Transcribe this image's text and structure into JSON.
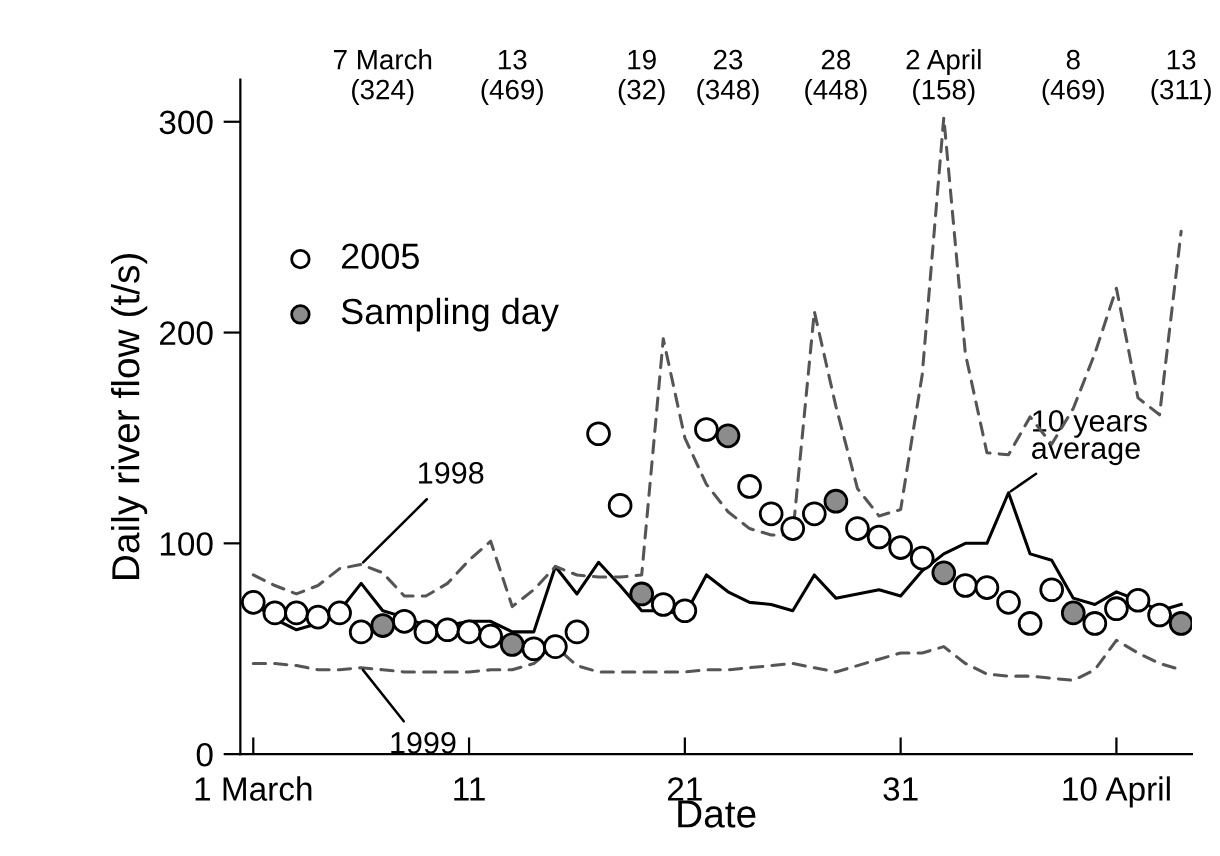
{
  "chart_data": {
    "type": "scatter",
    "xlabel": "Date",
    "ylabel": "Daily river flow (t/s)",
    "xlim": [
      0.4,
      44.5
    ],
    "ylim": [
      0,
      320
    ],
    "xticks": [
      {
        "value": 1,
        "label": "1 March"
      },
      {
        "value": 11,
        "label": "11"
      },
      {
        "value": 21,
        "label": "21"
      },
      {
        "value": 31,
        "label": "31"
      },
      {
        "value": 41,
        "label": "10 April"
      }
    ],
    "yticks": [
      0,
      100,
      200,
      300
    ],
    "grid": false,
    "legend": "top left",
    "annotations": [
      "7 March\n(324)",
      "13\n(469)",
      "19\n(32)",
      "23\n(348)",
      "28\n(448)",
      "2 April\n(158)",
      "8\n(469)",
      "13\n(311)"
    ],
    "series": [
      {
        "name": "2005",
        "type": "scatter",
        "marker": "circle",
        "color": "#ffffff",
        "x": [
          1,
          2,
          3,
          4,
          5,
          6,
          8,
          9,
          10,
          11,
          12,
          14,
          15,
          16,
          17,
          18,
          20,
          21,
          22,
          24,
          25,
          26,
          27,
          29,
          30,
          31,
          32,
          34,
          35,
          36,
          37,
          38,
          40,
          41,
          42,
          43
        ],
        "values": [
          72,
          67,
          67,
          65,
          67,
          58,
          63,
          58,
          59,
          58,
          56,
          50,
          51,
          58,
          152,
          118,
          71,
          68,
          154,
          127,
          114,
          107,
          114,
          107,
          103,
          98,
          93,
          80,
          79,
          72,
          62,
          78,
          62,
          69,
          73,
          66
        ]
      },
      {
        "name": "Sampling day",
        "type": "scatter",
        "marker": "circle",
        "color": "#8c8c8c",
        "x": [
          7,
          13,
          19,
          23,
          28,
          33,
          39,
          44
        ],
        "values": [
          61,
          52,
          76,
          151,
          120,
          86,
          67,
          62
        ]
      },
      {
        "name": "10 years average",
        "type": "line",
        "marker": "none",
        "line_style": "solid",
        "color": "#000000",
        "x": [
          1,
          2,
          3,
          4,
          5,
          6,
          7,
          8,
          9,
          10,
          11,
          12,
          13,
          14,
          15,
          16,
          17,
          18,
          19,
          20,
          21,
          22,
          23,
          24,
          25,
          26,
          27,
          28,
          29,
          30,
          31,
          32,
          33,
          34,
          35,
          36,
          37,
          38,
          39,
          40,
          41,
          42,
          43,
          44
        ],
        "values": [
          72,
          64,
          59,
          62,
          68,
          81,
          68,
          65,
          61,
          61,
          63,
          63,
          58,
          58,
          89,
          76,
          91,
          80,
          68,
          68,
          66,
          85,
          77,
          72,
          71,
          68,
          85,
          74,
          76,
          78,
          75,
          87,
          95,
          100,
          100,
          124,
          95,
          92,
          74,
          71,
          77,
          73,
          68,
          71
        ]
      },
      {
        "name": "1998",
        "type": "line",
        "marker": "none",
        "line_style": "dashed",
        "color": "#555555",
        "x": [
          1,
          2,
          3,
          4,
          5,
          6,
          7,
          8,
          9,
          10,
          11,
          12,
          13,
          14,
          15,
          16,
          17,
          18,
          19,
          20,
          21,
          22,
          23,
          24,
          25,
          26,
          27,
          28,
          29,
          30,
          31,
          32,
          33,
          34,
          35,
          36,
          37,
          38,
          39,
          40,
          41,
          42,
          43,
          44
        ],
        "values": [
          85,
          80,
          76,
          80,
          88,
          90,
          86,
          75,
          75,
          81,
          92,
          101,
          70,
          78,
          89,
          85,
          84,
          84,
          85,
          197,
          150,
          128,
          115,
          107,
          104,
          104,
          210,
          165,
          126,
          113,
          116,
          180,
          302,
          190,
          143,
          142,
          160,
          147,
          164,
          190,
          221,
          169,
          161,
          248
        ]
      },
      {
        "name": "1999",
        "type": "line",
        "marker": "none",
        "line_style": "dashed",
        "color": "#555555",
        "x": [
          1,
          2,
          3,
          4,
          5,
          6,
          7,
          8,
          9,
          10,
          11,
          12,
          13,
          14,
          15,
          16,
          17,
          18,
          19,
          20,
          21,
          22,
          23,
          24,
          25,
          26,
          27,
          28,
          29,
          30,
          31,
          32,
          33,
          34,
          35,
          36,
          37,
          38,
          39,
          40,
          41,
          42,
          43,
          44
        ],
        "values": [
          43,
          43,
          42,
          40,
          40,
          41,
          40,
          39,
          39,
          39,
          39,
          40,
          40,
          43,
          51,
          42,
          39,
          39,
          39,
          39,
          39,
          40,
          40,
          41,
          42,
          43,
          41,
          39,
          42,
          45,
          48,
          48,
          51,
          43,
          38,
          37,
          37,
          36,
          35,
          40,
          54,
          48,
          43,
          40
        ]
      }
    ]
  }
}
